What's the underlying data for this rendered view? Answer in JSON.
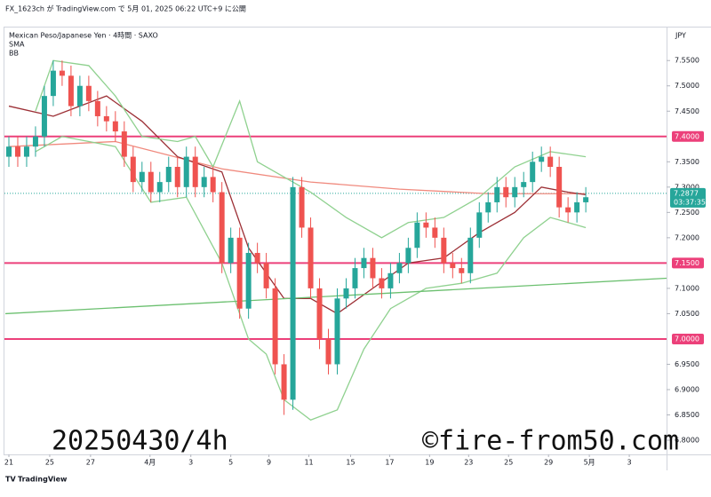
{
  "header": "FX_1623ch が TradingView.com で 5月 01, 2025 06:22 UTC+9 に公開",
  "footer": "TradingView",
  "watermark_left": "20250430/4h",
  "watermark_right": "©fire-from50.com",
  "chart_data": {
    "type": "candlestick",
    "title": "Mexican Peso/Japanese Yen · 4時間 · SAXO",
    "indicator_labels": [
      "SMA",
      "BB"
    ],
    "currency": "JPY",
    "up_color": "#26a69a",
    "down_color": "#ef5350",
    "open": [
      7.36,
      7.38,
      7.36,
      7.38,
      7.4,
      7.48,
      7.53,
      7.52,
      7.46,
      7.5,
      7.47,
      7.44,
      7.43,
      7.41,
      7.36,
      7.31,
      7.33,
      7.29,
      7.31,
      7.34,
      7.3,
      7.36,
      7.3,
      7.32,
      7.29,
      7.15,
      7.2,
      7.06,
      7.17,
      7.15,
      7.1,
      6.95,
      6.88,
      7.3,
      7.22,
      7.1,
      7.0,
      6.95,
      7.08,
      7.1,
      7.14,
      7.16,
      7.12,
      7.1,
      7.13,
      7.15,
      7.18,
      7.23,
      7.22,
      7.2,
      7.15,
      7.14,
      7.13,
      7.2,
      7.25,
      7.27,
      7.3,
      7.28,
      7.3,
      7.31,
      7.35,
      7.36,
      7.34,
      7.26,
      7.25,
      7.27
    ],
    "high": [
      7.4,
      7.4,
      7.4,
      7.42,
      7.5,
      7.55,
      7.55,
      7.54,
      7.52,
      7.52,
      7.49,
      7.46,
      7.45,
      7.43,
      7.38,
      7.35,
      7.35,
      7.33,
      7.36,
      7.36,
      7.38,
      7.38,
      7.34,
      7.34,
      7.31,
      7.22,
      7.22,
      7.19,
      7.19,
      7.17,
      7.12,
      6.97,
      7.32,
      7.32,
      7.24,
      7.12,
      7.02,
      7.1,
      7.12,
      7.16,
      7.18,
      7.18,
      7.14,
      7.15,
      7.17,
      7.2,
      7.25,
      7.25,
      7.24,
      7.22,
      7.17,
      7.16,
      7.22,
      7.27,
      7.29,
      7.32,
      7.32,
      7.32,
      7.33,
      7.37,
      7.38,
      7.38,
      7.36,
      7.28,
      7.29,
      7.3
    ],
    "low": [
      7.34,
      7.34,
      7.34,
      7.36,
      7.38,
      7.46,
      7.5,
      7.44,
      7.44,
      7.45,
      7.42,
      7.41,
      7.39,
      7.34,
      7.29,
      7.29,
      7.27,
      7.27,
      7.29,
      7.28,
      7.28,
      7.28,
      7.28,
      7.27,
      7.13,
      7.13,
      7.04,
      7.04,
      7.13,
      7.08,
      6.93,
      6.85,
      6.86,
      7.2,
      7.08,
      6.98,
      6.93,
      6.93,
      7.06,
      7.08,
      7.12,
      7.1,
      7.08,
      7.08,
      7.11,
      7.13,
      7.16,
      7.2,
      7.18,
      7.13,
      7.12,
      7.11,
      7.11,
      7.18,
      7.23,
      7.25,
      7.26,
      7.26,
      7.28,
      7.29,
      7.33,
      7.32,
      7.24,
      7.23,
      7.23,
      7.25
    ],
    "close": [
      7.38,
      7.36,
      7.38,
      7.4,
      7.48,
      7.53,
      7.52,
      7.46,
      7.5,
      7.47,
      7.44,
      7.43,
      7.41,
      7.36,
      7.31,
      7.33,
      7.29,
      7.31,
      7.34,
      7.3,
      7.36,
      7.3,
      7.32,
      7.29,
      7.15,
      7.2,
      7.06,
      7.17,
      7.15,
      7.1,
      6.95,
      6.88,
      7.3,
      7.22,
      7.1,
      7.0,
      6.95,
      7.08,
      7.1,
      7.14,
      7.16,
      7.12,
      7.1,
      7.13,
      7.15,
      7.18,
      7.23,
      7.22,
      7.2,
      7.15,
      7.14,
      7.13,
      7.2,
      7.25,
      7.27,
      7.3,
      7.28,
      7.3,
      7.31,
      7.35,
      7.36,
      7.34,
      7.26,
      7.25,
      7.27,
      7.28
    ],
    "lines": [
      {
        "color": "#f08a7e",
        "x": [
          0,
          12,
          24,
          34,
          44,
          54,
          65
        ],
        "values": [
          7.38,
          7.39,
          7.336,
          7.31,
          7.296,
          7.287,
          7.287
        ]
      },
      {
        "color": "#9c2f35",
        "x": [
          0,
          5,
          11,
          15,
          19,
          24,
          27,
          31,
          34,
          37,
          41,
          45,
          49,
          53,
          57,
          60,
          63,
          65
        ],
        "values": [
          7.46,
          7.44,
          7.48,
          7.43,
          7.36,
          7.33,
          7.18,
          7.08,
          7.08,
          7.05,
          7.1,
          7.15,
          7.16,
          7.21,
          7.25,
          7.3,
          7.29,
          7.285
        ]
      },
      {
        "color": "#8fd18f",
        "x": [
          3,
          5,
          9,
          12,
          15,
          19,
          21,
          23,
          26,
          28,
          31,
          34,
          38,
          42,
          45,
          49,
          53,
          57,
          61,
          65
        ],
        "values": [
          7.45,
          7.55,
          7.54,
          7.48,
          7.4,
          7.39,
          7.4,
          7.34,
          7.47,
          7.35,
          7.32,
          7.29,
          7.24,
          7.2,
          7.23,
          7.24,
          7.28,
          7.34,
          7.37,
          7.36
        ]
      },
      {
        "color": "#8fd18f",
        "x": [
          3,
          6,
          12,
          16,
          20,
          24,
          27,
          29,
          31,
          34,
          37,
          40,
          43,
          47,
          51,
          55,
          58,
          61,
          65
        ],
        "values": [
          7.37,
          7.4,
          7.38,
          7.27,
          7.28,
          7.15,
          7.0,
          6.97,
          6.88,
          6.84,
          6.86,
          6.98,
          7.06,
          7.1,
          7.11,
          7.13,
          7.2,
          7.24,
          7.22
        ]
      },
      {
        "color": "#6cc070",
        "x": [
          -0.4,
          74.1
        ],
        "values": [
          7.05,
          7.12
        ]
      }
    ],
    "levels": [
      {
        "value": 7.4,
        "label": "7.4000"
      },
      {
        "value": 7.15,
        "label": "7.1500"
      },
      {
        "value": 7.0,
        "label": "7.0000"
      }
    ],
    "level_color": "#ec407a",
    "last_price": {
      "value": 7.2877,
      "label": "7.2877"
    },
    "countdown": "03:37:35",
    "xlim": [
      -0.5,
      74.1
    ],
    "ylim": [
      6.772,
      7.617
    ],
    "xticks": [
      {
        "value": 0,
        "label": "21"
      },
      {
        "value": 4.6,
        "label": "25"
      },
      {
        "value": 9.2,
        "label": "27"
      },
      {
        "value": 15.9,
        "label": "4月"
      },
      {
        "value": 20.5,
        "label": "3"
      },
      {
        "value": 25,
        "label": "5"
      },
      {
        "value": 29.3,
        "label": "9"
      },
      {
        "value": 33.8,
        "label": "11"
      },
      {
        "value": 38.5,
        "label": "15"
      },
      {
        "value": 42.9,
        "label": "17"
      },
      {
        "value": 47.4,
        "label": "19"
      },
      {
        "value": 51.8,
        "label": "23"
      },
      {
        "value": 56.3,
        "label": "25"
      },
      {
        "value": 60.8,
        "label": "29"
      },
      {
        "value": 65.4,
        "label": "5月"
      },
      {
        "value": 69.9,
        "label": "3"
      }
    ],
    "yticks": [
      {
        "value": 7.55,
        "label": "7.5500"
      },
      {
        "value": 7.5,
        "label": "7.5000"
      },
      {
        "value": 7.45,
        "label": "7.4500"
      },
      {
        "value": 7.35,
        "label": "7.3500"
      },
      {
        "value": 7.3,
        "label": "7.3000"
      },
      {
        "value": 7.25,
        "label": "7.2500"
      },
      {
        "value": 7.2,
        "label": "7.2000"
      },
      {
        "value": 7.1,
        "label": "7.1000"
      },
      {
        "value": 7.05,
        "label": "7.0500"
      },
      {
        "value": 6.95,
        "label": "6.9500"
      },
      {
        "value": 6.9,
        "label": "6.9000"
      },
      {
        "value": 6.85,
        "label": "6.8500"
      },
      {
        "value": 6.8,
        "label": "6.8000"
      }
    ]
  }
}
